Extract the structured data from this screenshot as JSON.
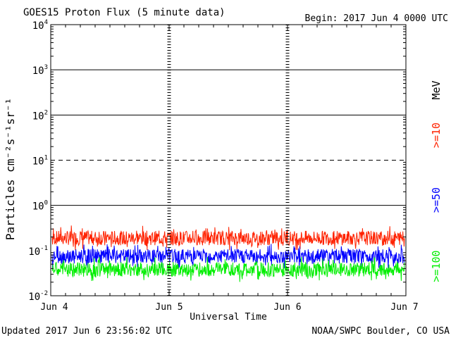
{
  "header": {
    "title": "GOES15 Proton Flux (5 minute data)",
    "begin": "Begin: 2017 Jun 4 0000 UTC"
  },
  "footer": {
    "updated": "Updated 2017 Jun  6 23:56:02 UTC",
    "credit": "NOAA/SWPC Boulder, CO USA"
  },
  "chart_data": {
    "type": "line",
    "title": "GOES15 Proton Flux (5 minute data)",
    "xlabel": "Universal Time",
    "ylabel": "Particles cm⁻²s⁻¹sr⁻¹",
    "y_scale": "log",
    "ylim": [
      0.01,
      10000
    ],
    "y_ticks": [
      {
        "base": "10",
        "exp": "-2",
        "value": 0.01
      },
      {
        "base": "10",
        "exp": "-1",
        "value": 0.1
      },
      {
        "base": "10",
        "exp": "0",
        "value": 1
      },
      {
        "base": "10",
        "exp": "1",
        "value": 10
      },
      {
        "base": "10",
        "exp": "2",
        "value": 100
      },
      {
        "base": "10",
        "exp": "3",
        "value": 1000
      },
      {
        "base": "10",
        "exp": "4",
        "value": 10000
      }
    ],
    "x_ticks": [
      "Jun 4",
      "Jun 5",
      "Jun 6",
      "Jun 7"
    ],
    "xlim": [
      "2017-06-04T00:00",
      "2017-06-07T00:00"
    ],
    "horizontal_lines": [
      {
        "y": 1,
        "style": "solid"
      },
      {
        "y": 10,
        "style": "dashed"
      },
      {
        "y": 100,
        "style": "solid"
      },
      {
        "y": 1000,
        "style": "solid"
      }
    ],
    "unit_label": "MeV",
    "series": [
      {
        "name": ">=10",
        "color": "#ff2200",
        "level": 0.19
      },
      {
        "name": ">=50",
        "color": "#0000ff",
        "level": 0.075
      },
      {
        "name": ">=100",
        "color": "#00ee00",
        "level": 0.038
      }
    ]
  }
}
